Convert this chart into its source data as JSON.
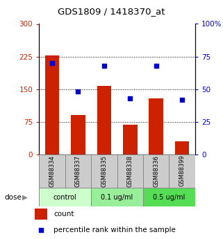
{
  "title": "GDS1809 / 1418370_at",
  "samples": [
    "GSM88334",
    "GSM88337",
    "GSM88335",
    "GSM88338",
    "GSM88336",
    "GSM88399"
  ],
  "bar_values": [
    228,
    90,
    157,
    68,
    128,
    30
  ],
  "scatter_values": [
    70,
    48,
    68,
    43,
    68,
    42
  ],
  "bar_color": "#cc2200",
  "scatter_color": "#0000cc",
  "left_ylim": [
    0,
    300
  ],
  "right_ylim": [
    0,
    100
  ],
  "left_yticks": [
    0,
    75,
    150,
    225,
    300
  ],
  "right_yticks": [
    0,
    25,
    50,
    75,
    100
  ],
  "right_yticklabels": [
    "0",
    "25",
    "50",
    "75",
    "100%"
  ],
  "groups": [
    {
      "label": "control",
      "indices": [
        0,
        1
      ],
      "color": "#ccffcc"
    },
    {
      "label": "0.1 ug/ml",
      "indices": [
        2,
        3
      ],
      "color": "#99ee99"
    },
    {
      "label": "0.5 ug/ml",
      "indices": [
        4,
        5
      ],
      "color": "#55dd55"
    }
  ],
  "dose_label": "dose",
  "legend_count": "count",
  "legend_percentile": "percentile rank within the sample",
  "grid_yticks": [
    75,
    150,
    225
  ],
  "bar_color_legend": "#cc2200",
  "scatter_color_legend": "#0000cc",
  "tick_label_bg": "#cccccc",
  "fig_width": 3.21,
  "fig_height": 3.45,
  "dpi": 100
}
